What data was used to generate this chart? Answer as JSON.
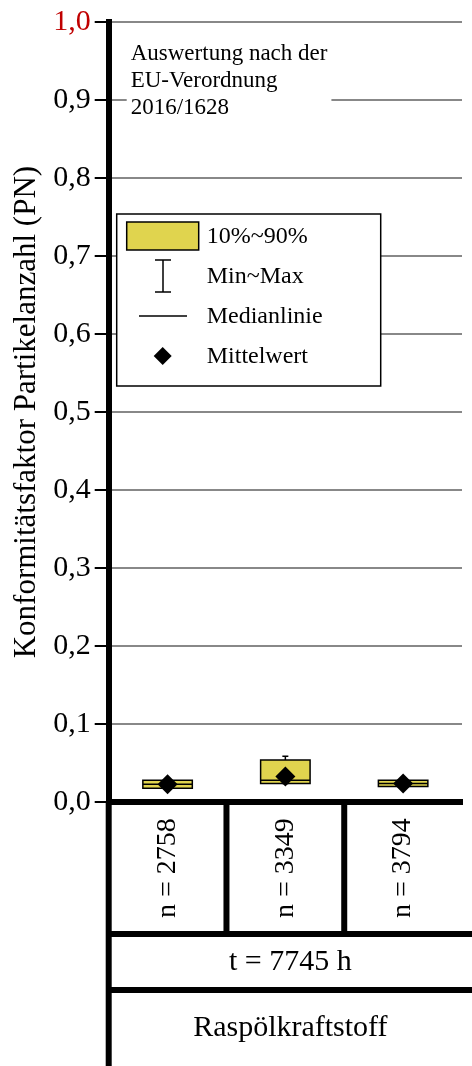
{
  "chart_data": {
    "type": "box",
    "ylabel": "Konformitätsfaktor Partikelanzahl (PN)",
    "categories": [
      "n = 2758",
      "n = 3349",
      "n = 3794"
    ],
    "ylim": [
      0,
      1
    ],
    "yticks": [
      {
        "value": 0,
        "label": "0,0"
      },
      {
        "value": 0.1,
        "label": "0,1"
      },
      {
        "value": 0.2,
        "label": "0,2"
      },
      {
        "value": 0.3,
        "label": "0,3"
      },
      {
        "value": 0.4,
        "label": "0,4"
      },
      {
        "value": 0.5,
        "label": "0,5"
      },
      {
        "value": 0.6,
        "label": "0,6"
      },
      {
        "value": 0.7,
        "label": "0,7"
      },
      {
        "value": 0.8,
        "label": "0,8"
      },
      {
        "value": 0.9,
        "label": "0,9"
      },
      {
        "value": 1,
        "label": "1,0"
      }
    ],
    "grid": "y",
    "legend": "top left",
    "series": [
      {
        "type": "box",
        "name": "10%~90%",
        "color": "#e0d44e",
        "boxes": [
          {
            "low": 0.018,
            "q1": 0.018,
            "median": 0.023,
            "q3": 0.028,
            "high": 0.028
          },
          {
            "low": 0.024,
            "q1": 0.024,
            "median": 0.028,
            "q3": 0.054,
            "high": 0.059
          },
          {
            "low": 0.02,
            "q1": 0.02,
            "median": 0.024,
            "q3": 0.028,
            "high": 0.03
          }
        ]
      },
      {
        "type": "scatter",
        "name": "Mittelwert",
        "color": "#000000",
        "marker": "diamond",
        "x": [
          "n = 2758",
          "n = 3349",
          "n = 3794"
        ],
        "values": [
          0.023,
          0.033,
          0.024
        ]
      }
    ],
    "annotations": [
      "Auswertung nach der EU-Verordnung 2016/1628",
      "Min~Max",
      "Medianlinie",
      "t = 7745 h",
      "Raspölkraftstoff"
    ]
  }
}
